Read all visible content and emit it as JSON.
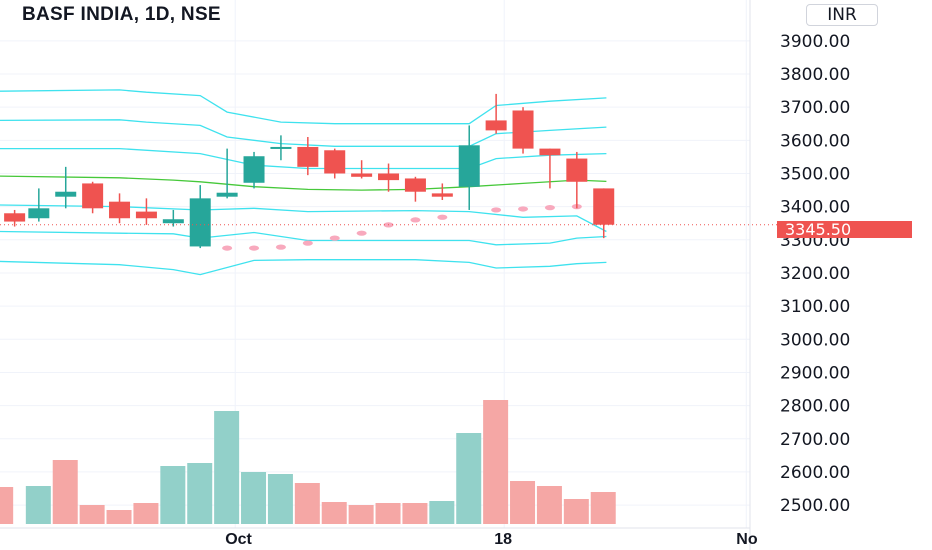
{
  "header": {
    "title": "BASF INDIA, 1D, NSE",
    "currency": "INR"
  },
  "last_price_label": "3345.50",
  "colors": {
    "up": "#26a69a",
    "down": "#ef5350",
    "volume_up": "#92d0c9",
    "volume_down": "#f5a7a5",
    "band": "#3fe2ee",
    "basis": "#46c83a",
    "dots": "#f8a9bd"
  },
  "chart_data": {
    "type": "candlestick",
    "title": "BASF INDIA, 1D, NSE",
    "y_ticks": [
      "3900.00",
      "3800.00",
      "3700.00",
      "3600.00",
      "3500.00",
      "3400.00",
      "3300.00",
      "3200.00",
      "3100.00",
      "3000.00",
      "2900.00",
      "2800.00",
      "2700.00",
      "2600.00",
      "2500.00"
    ],
    "ylim": [
      2480,
      4000
    ],
    "x_labels": [
      {
        "text": "Oct",
        "index": 8
      },
      {
        "text": "18",
        "index": 18
      },
      {
        "text": "No",
        "index": 27
      }
    ],
    "candles": [
      {
        "i": -0.2,
        "o": 3380,
        "c": 3355,
        "h": 3390,
        "l": 3340
      },
      {
        "i": 0.7,
        "o": 3365,
        "c": 3395,
        "h": 3455,
        "l": 3355
      },
      {
        "i": 1.7,
        "o": 3430,
        "c": 3445,
        "h": 3520,
        "l": 3395
      },
      {
        "i": 2.7,
        "o": 3470,
        "c": 3395,
        "h": 3475,
        "l": 3380
      },
      {
        "i": 3.7,
        "o": 3415,
        "c": 3365,
        "h": 3440,
        "l": 3350
      },
      {
        "i": 4.7,
        "o": 3385,
        "c": 3365,
        "h": 3425,
        "l": 3345
      },
      {
        "i": 5.7,
        "o": 3350,
        "c": 3362,
        "h": 3390,
        "l": 3340
      },
      {
        "i": 6.7,
        "o": 3280,
        "c": 3425,
        "h": 3465,
        "l": 3275
      },
      {
        "i": 7.7,
        "o": 3430,
        "c": 3442,
        "h": 3575,
        "l": 3425
      },
      {
        "i": 8.7,
        "o": 3472,
        "c": 3552,
        "h": 3565,
        "l": 3455
      },
      {
        "i": 9.7,
        "o": 3575,
        "c": 3580,
        "h": 3615,
        "l": 3540
      },
      {
        "i": 10.7,
        "o": 3580,
        "c": 3520,
        "h": 3610,
        "l": 3495
      },
      {
        "i": 11.7,
        "o": 3570,
        "c": 3500,
        "h": 3575,
        "l": 3485
      },
      {
        "i": 12.7,
        "o": 3500,
        "c": 3490,
        "h": 3540,
        "l": 3485
      },
      {
        "i": 13.7,
        "o": 3500,
        "c": 3480,
        "h": 3530,
        "l": 3445
      },
      {
        "i": 14.7,
        "o": 3485,
        "c": 3445,
        "h": 3490,
        "l": 3415
      },
      {
        "i": 15.7,
        "o": 3440,
        "c": 3430,
        "h": 3470,
        "l": 3420
      },
      {
        "i": 16.7,
        "o": 3460,
        "c": 3585,
        "h": 3645,
        "l": 3390
      },
      {
        "i": 17.7,
        "o": 3660,
        "c": 3630,
        "h": 3740,
        "l": 3620
      },
      {
        "i": 18.7,
        "o": 3690,
        "c": 3575,
        "h": 3700,
        "l": 3560
      },
      {
        "i": 19.7,
        "o": 3575,
        "c": 3555,
        "h": 3575,
        "l": 3455
      },
      {
        "i": 20.7,
        "o": 3545,
        "c": 3475,
        "h": 3565,
        "l": 3395
      },
      {
        "i": 21.7,
        "o": 3455,
        "c": 3345.5,
        "h": 3455,
        "l": 3305
      }
    ],
    "volume": [
      {
        "i": -0.7,
        "v": 37,
        "up": false
      },
      {
        "i": 0.7,
        "v": 38,
        "up": true
      },
      {
        "i": 1.7,
        "v": 64,
        "up": false
      },
      {
        "i": 2.7,
        "v": 19,
        "up": false
      },
      {
        "i": 3.7,
        "v": 14,
        "up": false
      },
      {
        "i": 4.7,
        "v": 21,
        "up": false
      },
      {
        "i": 5.7,
        "v": 58,
        "up": true
      },
      {
        "i": 6.7,
        "v": 61,
        "up": true
      },
      {
        "i": 7.7,
        "v": 113,
        "up": true
      },
      {
        "i": 8.7,
        "v": 52,
        "up": true
      },
      {
        "i": 9.7,
        "v": 50,
        "up": true
      },
      {
        "i": 10.7,
        "v": 41,
        "up": false
      },
      {
        "i": 11.7,
        "v": 22,
        "up": false
      },
      {
        "i": 12.7,
        "v": 19,
        "up": false
      },
      {
        "i": 13.7,
        "v": 21,
        "up": false
      },
      {
        "i": 14.7,
        "v": 21,
        "up": false
      },
      {
        "i": 15.7,
        "v": 23,
        "up": true
      },
      {
        "i": 16.7,
        "v": 91,
        "up": true
      },
      {
        "i": 17.7,
        "v": 124,
        "up": false
      },
      {
        "i": 18.7,
        "v": 43,
        "up": false
      },
      {
        "i": 19.7,
        "v": 38,
        "up": false
      },
      {
        "i": 20.7,
        "v": 25,
        "up": false
      },
      {
        "i": 21.7,
        "v": 32,
        "up": false
      }
    ],
    "basis": [
      [
        -0.8,
        3492
      ],
      [
        3.7,
        3487
      ],
      [
        5.7,
        3480
      ],
      [
        6.7,
        3475
      ],
      [
        8.7,
        3460
      ],
      [
        10.7,
        3452
      ],
      [
        12.7,
        3450
      ],
      [
        14.7,
        3452
      ],
      [
        16.7,
        3460
      ],
      [
        18.7,
        3470
      ],
      [
        20.7,
        3480
      ],
      [
        21.8,
        3476
      ]
    ],
    "band_upper_outer": [
      [
        -0.8,
        3748
      ],
      [
        3.7,
        3752
      ],
      [
        4.7,
        3745
      ],
      [
        6.7,
        3735
      ],
      [
        7.7,
        3685
      ],
      [
        9.7,
        3655
      ],
      [
        11.7,
        3650
      ],
      [
        14.7,
        3650
      ],
      [
        16.7,
        3650
      ],
      [
        17.7,
        3705
      ],
      [
        19.7,
        3718
      ],
      [
        21.8,
        3728
      ]
    ],
    "band_upper_mid": [
      [
        -0.8,
        3660
      ],
      [
        3.7,
        3662
      ],
      [
        4.7,
        3655
      ],
      [
        6.7,
        3645
      ],
      [
        7.7,
        3610
      ],
      [
        9.7,
        3590
      ],
      [
        11.7,
        3582
      ],
      [
        14.7,
        3582
      ],
      [
        16.7,
        3582
      ],
      [
        17.7,
        3620
      ],
      [
        19.7,
        3630
      ],
      [
        21.8,
        3640
      ]
    ],
    "band_upper_inner": [
      [
        -0.8,
        3575
      ],
      [
        3.7,
        3575
      ],
      [
        6.7,
        3560
      ],
      [
        8.7,
        3525
      ],
      [
        10.7,
        3515
      ],
      [
        14.7,
        3515
      ],
      [
        16.7,
        3515
      ],
      [
        17.7,
        3545
      ],
      [
        19.7,
        3555
      ],
      [
        21.8,
        3560
      ]
    ],
    "band_lower_inner": [
      [
        -0.8,
        3405
      ],
      [
        3.7,
        3400
      ],
      [
        6.7,
        3390
      ],
      [
        8.7,
        3395
      ],
      [
        10.7,
        3385
      ],
      [
        14.7,
        3388
      ],
      [
        16.7,
        3385
      ],
      [
        18.7,
        3368
      ],
      [
        20.7,
        3372
      ],
      [
        21.8,
        3325
      ]
    ],
    "band_lower_mid": [
      [
        -0.8,
        3325
      ],
      [
        3.7,
        3320
      ],
      [
        5.7,
        3318
      ],
      [
        6.7,
        3305
      ],
      [
        8.7,
        3322
      ],
      [
        10.7,
        3298
      ],
      [
        14.7,
        3298
      ],
      [
        16.7,
        3298
      ],
      [
        17.7,
        3285
      ],
      [
        19.7,
        3290
      ],
      [
        20.7,
        3305
      ],
      [
        21.8,
        3310
      ]
    ],
    "band_lower_outer": [
      [
        -0.8,
        3235
      ],
      [
        3.7,
        3225
      ],
      [
        5.7,
        3210
      ],
      [
        6.7,
        3195
      ],
      [
        8.7,
        3238
      ],
      [
        10.7,
        3240
      ],
      [
        14.7,
        3240
      ],
      [
        16.7,
        3232
      ],
      [
        17.7,
        3215
      ],
      [
        19.7,
        3220
      ],
      [
        20.7,
        3228
      ],
      [
        21.8,
        3232
      ]
    ],
    "sar_dots": [
      [
        7.7,
        3275
      ],
      [
        8.7,
        3275
      ],
      [
        9.7,
        3278
      ],
      [
        10.7,
        3290
      ],
      [
        11.7,
        3305
      ],
      [
        12.7,
        3320
      ],
      [
        13.7,
        3345
      ],
      [
        14.7,
        3360
      ],
      [
        15.7,
        3368
      ],
      [
        17.7,
        3390
      ],
      [
        18.7,
        3393
      ],
      [
        19.7,
        3397
      ],
      [
        20.7,
        3400
      ]
    ]
  }
}
